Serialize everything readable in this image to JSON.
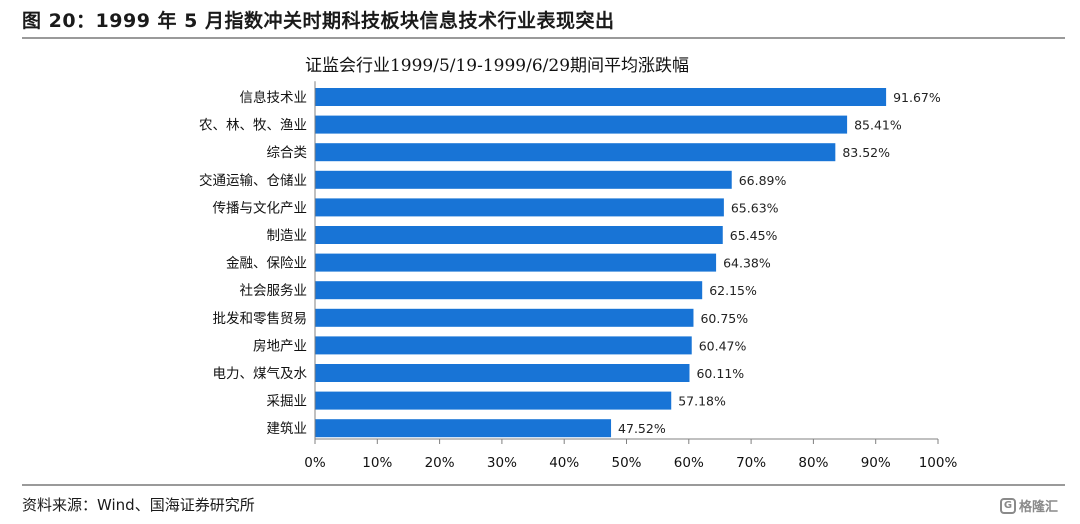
{
  "figure": {
    "title": "图 20：1999 年 5 月指数冲关时期科技板块信息技术行业表现突出",
    "source": "资料来源：Wind、国海证券研究所",
    "watermark": "格隆汇"
  },
  "colors": {
    "bar": "#1874d6",
    "axis": "#808080"
  },
  "chart_data": {
    "type": "bar",
    "orientation": "horizontal",
    "title": "证监会行业1999/5/19-1999/6/29期间平均涨跌幅",
    "categories": [
      "信息技术业",
      "农、林、牧、渔业",
      "综合类",
      "交通运输、仓储业",
      "传播与文化产业",
      "制造业",
      "金融、保险业",
      "社会服务业",
      "批发和零售贸易",
      "房地产业",
      "电力、煤气及水",
      "采掘业",
      "建筑业"
    ],
    "values": [
      91.67,
      85.41,
      83.52,
      66.89,
      65.63,
      65.45,
      64.38,
      62.15,
      60.75,
      60.47,
      60.11,
      57.18,
      47.52
    ],
    "value_labels": [
      "91.67%",
      "85.41%",
      "83.52%",
      "66.89%",
      "65.63%",
      "65.45%",
      "64.38%",
      "62.15%",
      "60.75%",
      "60.47%",
      "60.11%",
      "57.18%",
      "47.52%"
    ],
    "xlim": [
      0,
      100
    ],
    "x_ticks": [
      "0%",
      "10%",
      "20%",
      "30%",
      "40%",
      "50%",
      "60%",
      "70%",
      "80%",
      "90%",
      "100%"
    ],
    "grid": false,
    "legend": "none"
  }
}
